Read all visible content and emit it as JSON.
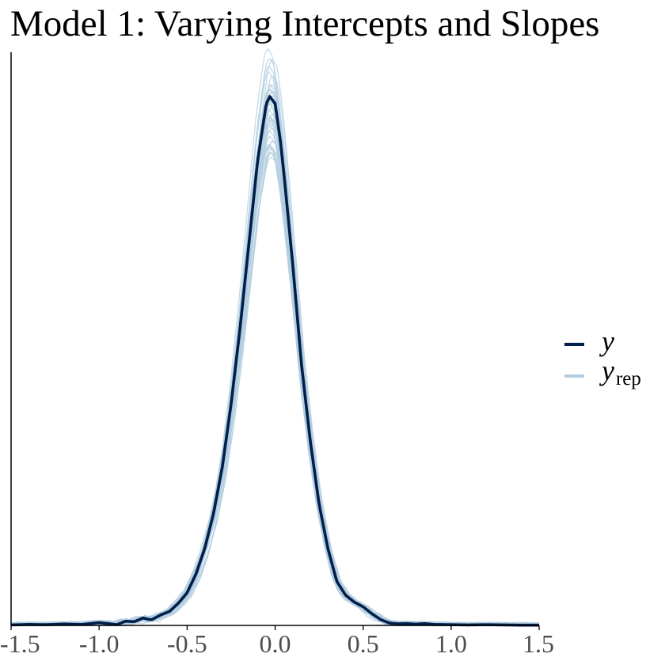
{
  "chart_data": {
    "type": "line",
    "title": "Model 1: Varying Intercepts and Slopes",
    "xlabel": "",
    "ylabel": "",
    "xlim": [
      -1.5,
      1.5
    ],
    "y_axis_ticks_shown": false,
    "grid": false,
    "legend_position": "right",
    "x_ticks": [
      -1.5,
      -1.0,
      -0.5,
      0.0,
      0.5,
      1.0,
      1.5
    ],
    "x_tick_labels": [
      "-1.5",
      "-1.0",
      "-0.5",
      "0.0",
      "0.5",
      "1.0",
      "1.5"
    ],
    "colors": {
      "y": "#011f4b",
      "yrep": "#b3cde0",
      "axis": "#000000"
    },
    "series": [
      {
        "name": "y",
        "label_main": "y",
        "label_sub": "",
        "x": [
          -1.5,
          -1.4,
          -1.3,
          -1.2,
          -1.1,
          -1.0,
          -0.95,
          -0.9,
          -0.85,
          -0.8,
          -0.75,
          -0.72,
          -0.7,
          -0.65,
          -0.6,
          -0.55,
          -0.5,
          -0.45,
          -0.4,
          -0.35,
          -0.3,
          -0.25,
          -0.2,
          -0.15,
          -0.1,
          -0.05,
          -0.03,
          0.0,
          0.03,
          0.05,
          0.1,
          0.15,
          0.2,
          0.25,
          0.3,
          0.35,
          0.4,
          0.45,
          0.5,
          0.55,
          0.6,
          0.65,
          0.7,
          0.75,
          0.8,
          0.85,
          0.9,
          1.0,
          1.1,
          1.2,
          1.3,
          1.4,
          1.5
        ],
        "y": [
          0.002,
          0.004,
          0.003,
          0.006,
          0.004,
          0.012,
          0.008,
          0.003,
          0.018,
          0.016,
          0.032,
          0.026,
          0.025,
          0.045,
          0.06,
          0.095,
          0.14,
          0.22,
          0.33,
          0.48,
          0.68,
          0.95,
          1.27,
          1.63,
          1.99,
          2.24,
          2.27,
          2.24,
          2.08,
          1.94,
          1.55,
          1.12,
          0.79,
          0.52,
          0.33,
          0.19,
          0.13,
          0.1,
          0.08,
          0.05,
          0.025,
          0.01,
          0.007,
          0.008,
          0.005,
          0.008,
          0.004,
          0.003,
          0.002,
          0.003,
          0.002,
          0.001,
          0.001
        ]
      },
      {
        "name": "yrep",
        "label_main": "y",
        "label_sub": "rep",
        "draws": 40
      }
    ]
  }
}
